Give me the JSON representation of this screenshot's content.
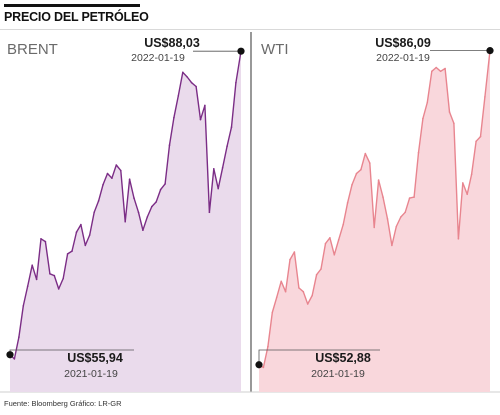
{
  "title": "PRECIO DEL PETRÓLEO",
  "source": "Fuente: Bloomberg   Gráfico: LR-GR",
  "colors": {
    "brent_line": "#7b2d86",
    "brent_fill": "#eadbec",
    "wti_line": "#e8858f",
    "wti_fill": "#f9d7dc",
    "marker": "#111111",
    "divider": "#555555"
  },
  "chart_data": [
    {
      "type": "area",
      "title": "BRENT",
      "unit": "US$",
      "x_range": [
        "2021-01-19",
        "2022-01-19"
      ],
      "ylim": [
        52,
        89
      ],
      "series": [
        {
          "x": [
            "2021-01-19",
            "2021-01-26",
            "2021-02-02",
            "2021-02-09",
            "2021-02-16",
            "2021-02-23",
            "2021-03-02",
            "2021-03-09",
            "2021-03-16",
            "2021-03-23",
            "2021-03-30",
            "2021-04-06",
            "2021-04-13",
            "2021-04-20",
            "2021-04-27",
            "2021-05-04",
            "2021-05-11",
            "2021-05-18",
            "2021-05-25",
            "2021-06-01",
            "2021-06-08",
            "2021-06-15",
            "2021-06-22",
            "2021-06-29",
            "2021-07-06",
            "2021-07-13",
            "2021-07-20",
            "2021-07-27",
            "2021-08-03",
            "2021-08-10",
            "2021-08-17",
            "2021-08-24",
            "2021-08-31",
            "2021-09-07",
            "2021-09-14",
            "2021-09-21",
            "2021-09-28",
            "2021-10-05",
            "2021-10-12",
            "2021-10-19",
            "2021-10-26",
            "2021-11-02",
            "2021-11-09",
            "2021-11-16",
            "2021-11-23",
            "2021-11-30",
            "2021-12-07",
            "2021-12-14",
            "2021-12-21",
            "2021-12-28",
            "2022-01-04",
            "2022-01-11",
            "2022-01-19"
          ],
          "values": [
            55.94,
            55.5,
            57.8,
            61.1,
            63.2,
            65.4,
            63.9,
            68.2,
            67.9,
            64.5,
            64.3,
            62.9,
            64.0,
            66.6,
            66.9,
            68.9,
            69.7,
            67.5,
            68.6,
            71.0,
            72.2,
            73.9,
            75.1,
            74.6,
            76.0,
            75.4,
            70.0,
            74.5,
            72.5,
            71.0,
            69.1,
            70.5,
            71.6,
            72.1,
            73.4,
            74.0,
            78.1,
            81.0,
            83.3,
            85.8,
            85.3,
            84.7,
            84.3,
            80.8,
            82.3,
            71.0,
            75.6,
            73.5,
            75.7,
            78.0,
            80.0,
            84.7,
            88.03
          ]
        }
      ],
      "annotations": [
        {
          "value": "US$55,94",
          "date": "2021-01-19"
        },
        {
          "value": "US$88,03",
          "date": "2022-01-19"
        }
      ]
    },
    {
      "type": "area",
      "title": "WTI",
      "unit": "US$",
      "x_range": [
        "2021-01-19",
        "2022-01-19"
      ],
      "ylim": [
        50,
        87
      ],
      "series": [
        {
          "x": [
            "2021-01-19",
            "2021-01-26",
            "2021-02-02",
            "2021-02-09",
            "2021-02-16",
            "2021-02-23",
            "2021-03-02",
            "2021-03-09",
            "2021-03-16",
            "2021-03-23",
            "2021-03-30",
            "2021-04-06",
            "2021-04-13",
            "2021-04-20",
            "2021-04-27",
            "2021-05-04",
            "2021-05-11",
            "2021-05-18",
            "2021-05-25",
            "2021-06-01",
            "2021-06-08",
            "2021-06-15",
            "2021-06-22",
            "2021-06-29",
            "2021-07-06",
            "2021-07-13",
            "2021-07-20",
            "2021-07-27",
            "2021-08-03",
            "2021-08-10",
            "2021-08-17",
            "2021-08-24",
            "2021-08-31",
            "2021-09-07",
            "2021-09-14",
            "2021-09-21",
            "2021-09-28",
            "2021-10-05",
            "2021-10-12",
            "2021-10-19",
            "2021-10-26",
            "2021-11-02",
            "2021-11-09",
            "2021-11-16",
            "2021-11-23",
            "2021-11-30",
            "2021-12-07",
            "2021-12-14",
            "2021-12-21",
            "2021-12-28",
            "2022-01-04",
            "2022-01-11",
            "2022-01-19"
          ],
          "values": [
            52.88,
            52.6,
            54.8,
            58.4,
            60.0,
            61.7,
            60.6,
            64.0,
            64.8,
            61.0,
            60.6,
            59.3,
            60.2,
            62.4,
            63.0,
            65.7,
            66.3,
            64.5,
            66.1,
            67.7,
            70.0,
            71.9,
            73.1,
            73.5,
            75.2,
            74.2,
            67.4,
            72.4,
            70.6,
            68.3,
            65.5,
            67.5,
            68.5,
            69.0,
            70.5,
            70.6,
            75.3,
            78.9,
            80.6,
            83.9,
            84.3,
            83.9,
            84.2,
            79.6,
            78.4,
            66.2,
            72.1,
            70.9,
            73.0,
            76.5,
            77.0,
            81.2,
            86.09
          ]
        }
      ],
      "annotations": [
        {
          "value": "US$52,88",
          "date": "2021-01-19"
        },
        {
          "value": "US$86,09",
          "date": "2022-01-19"
        }
      ]
    }
  ]
}
